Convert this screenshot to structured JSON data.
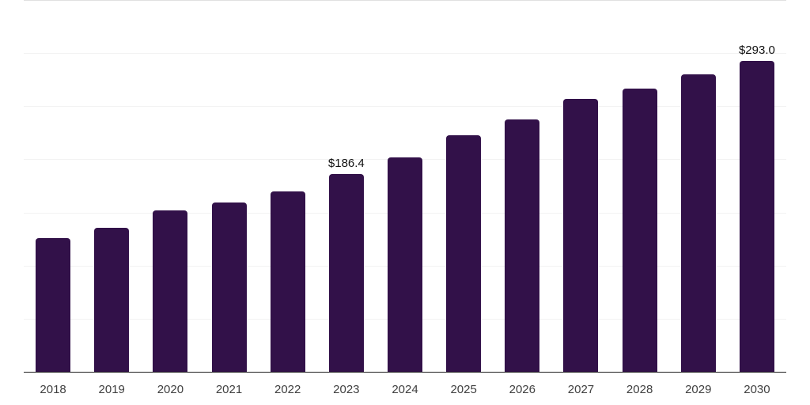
{
  "chart_data": {
    "type": "bar",
    "title": "",
    "xlabel": "",
    "ylabel": "",
    "categories": [
      "2018",
      "2019",
      "2020",
      "2021",
      "2022",
      "2023",
      "2024",
      "2025",
      "2026",
      "2027",
      "2028",
      "2029",
      "2030"
    ],
    "values": [
      125.5,
      135.4,
      151.9,
      159.3,
      170.0,
      186.4,
      201.7,
      222.5,
      237.3,
      256.7,
      266.5,
      280.3,
      293.0
    ],
    "value_labels": [
      "",
      "",
      "",
      "",
      "",
      "$186.4",
      "",
      "",
      "",
      "",
      "",
      "",
      "$293.0"
    ],
    "ylim": [
      0,
      350
    ],
    "gridline_step": 50,
    "grid": true,
    "legend": "none",
    "y_tick_labels_visible": false,
    "bar_color": "#321149",
    "axis_line_color": "#1f1f1f",
    "gridline_color": "#f2f2f2",
    "top_gridline_color": "#e0e0e0",
    "value_label_color": "#111111",
    "tick_label_color": "#404040",
    "background_color": "#ffffff"
  }
}
